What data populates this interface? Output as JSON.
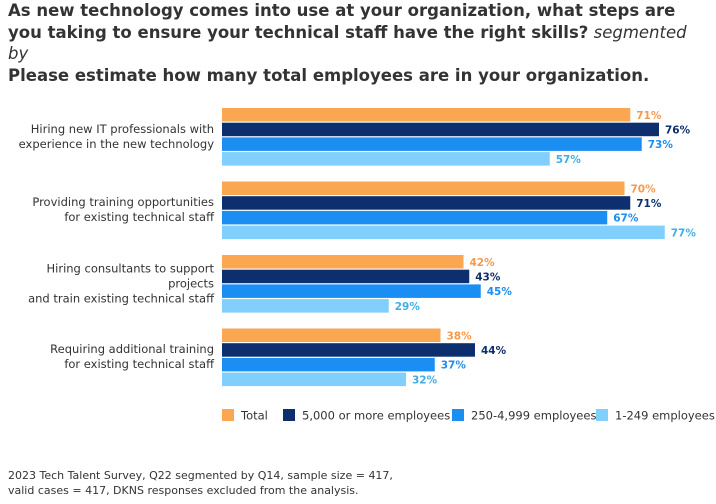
{
  "chart_data": {
    "type": "bar",
    "orientation": "horizontal",
    "title": "As new technology comes into use at your organization, what steps are you taking to ensure your technical staff have the right skills?",
    "title_connector": "segmented by",
    "subtitle": "Please estimate how many total employees are in your organization.",
    "categories": [
      "Hiring new IT professionals with\nexperience in the new technology",
      "Providing training opportunities\nfor existing technical staff",
      "Hiring consultants to support projects\nand train existing technical staff",
      "Requiring additional training\nfor existing technical staff"
    ],
    "series": [
      {
        "name": "Total",
        "color": "#fba651",
        "label_color": "#f59a4c",
        "values": [
          71,
          70,
          42,
          38
        ],
        "value_labels": [
          "71%",
          "70%",
          "42%",
          "38%"
        ]
      },
      {
        "name": "5,000 or more employees",
        "color": "#0d2f6e",
        "label_color": "#0d2f6e",
        "values": [
          76,
          71,
          43,
          44
        ],
        "value_labels": [
          "76%",
          "71%",
          "43%",
          "44%"
        ]
      },
      {
        "name": "250-4,999 employees",
        "color": "#1a8ef2",
        "label_color": "#1a8ef2",
        "values": [
          73,
          67,
          45,
          37
        ],
        "value_labels": [
          "73%",
          "67%",
          "45%",
          "37%"
        ]
      },
      {
        "name": "1-249 employees",
        "color": "#80cffd",
        "label_color": "#3eaee8",
        "values": [
          57,
          77,
          29,
          32
        ],
        "value_labels": [
          "57%",
          "77%",
          "29%",
          "32%"
        ]
      }
    ],
    "note": "2023 Tech Talent Survey, Q22 segmented by Q14, sample size = 417,\nvalid cases = 417, DKNS responses excluded from the analysis."
  }
}
